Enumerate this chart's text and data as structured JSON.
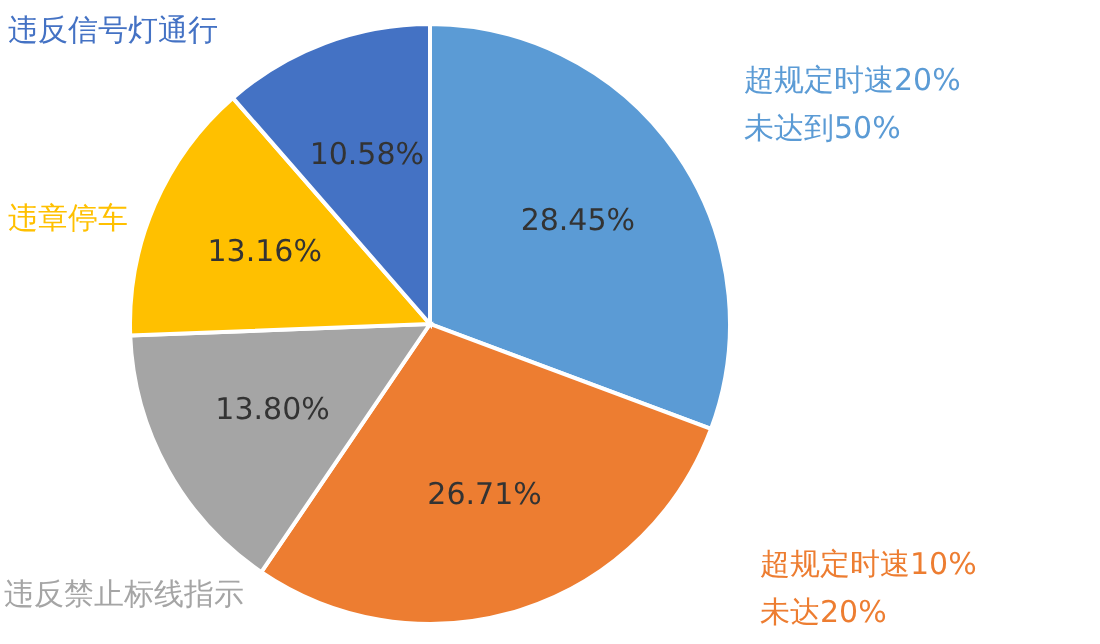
{
  "chart_data": {
    "type": "pie",
    "categories": [
      "超规定时速20%\n未达到50%",
      "超规定时速10%\n未达20%",
      "违反禁止标线指示",
      "违章停车",
      "违反信号灯通行"
    ],
    "values": [
      28.45,
      26.71,
      13.8,
      13.16,
      10.58
    ],
    "value_labels": [
      "28.45%",
      "26.71%",
      "13.80%",
      "13.16%",
      "10.58%"
    ],
    "colors": [
      "#5b9bd5",
      "#ed7d31",
      "#a5a5a5",
      "#ffc000",
      "#4472c4"
    ]
  }
}
